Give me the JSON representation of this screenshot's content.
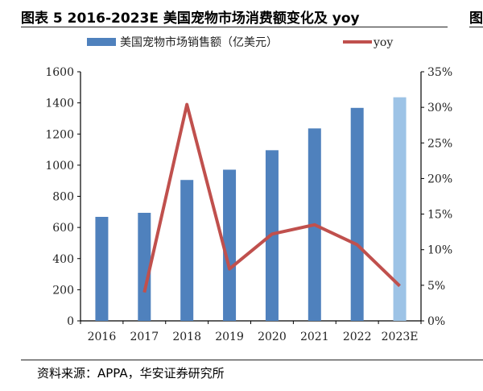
{
  "header": {
    "title": "图表 5 2016-2023E 美国宠物市场消费额变化及 yoy",
    "next_title_fragment": "图"
  },
  "footer": {
    "source": "资料来源：APPA，华安证券研究所"
  },
  "chart_data": {
    "type": "bar",
    "categories": [
      "2016",
      "2017",
      "2018",
      "2019",
      "2020",
      "2021",
      "2022",
      "2023E"
    ],
    "series": [
      {
        "name": "美国宠物市场销售额（亿美元）",
        "type": "bar",
        "axis": "left",
        "values": [
          668,
          694,
          905,
          971,
          1096,
          1236,
          1368,
          1436
        ],
        "color": "#4F81BD",
        "estimate_color": "#9DC3E6"
      },
      {
        "name": "yoy",
        "type": "line",
        "axis": "right",
        "values": [
          null,
          4.0,
          30.4,
          7.3,
          12.2,
          13.5,
          10.7,
          4.9
        ],
        "color": "#C0504D"
      }
    ],
    "left_axis": {
      "ylim": [
        0,
        1600
      ],
      "ticks": [
        "0",
        "200",
        "400",
        "600",
        "800",
        "1000",
        "1200",
        "1400",
        "1600"
      ]
    },
    "right_axis": {
      "ylim": [
        0,
        35
      ],
      "ticks": [
        "0%",
        "5%",
        "10%",
        "15%",
        "20%",
        "25%",
        "30%",
        "35%"
      ]
    },
    "legend": {
      "placement": "top"
    }
  }
}
